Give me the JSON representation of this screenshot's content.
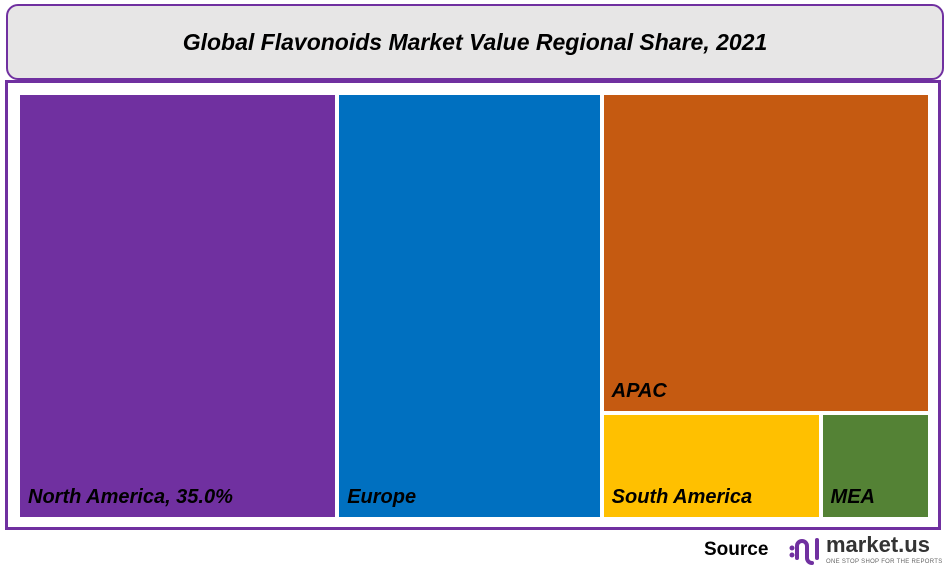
{
  "chart_data": {
    "type": "treemap",
    "title": "Global Flavonoids Market Value Regional Share, 2021",
    "categories": [
      "North America",
      "Europe",
      "APAC",
      "South America",
      "MEA"
    ],
    "values": [
      35.0,
      29.0,
      27.0,
      6.0,
      3.0
    ],
    "labels": [
      "North America, 35.0%",
      "Europe",
      "APAC",
      "South America",
      "MEA"
    ],
    "colors": [
      "#7030A0",
      "#0070C0",
      "#C55A11",
      "#FFC000",
      "#548235"
    ],
    "unit": "%"
  },
  "source": {
    "label": "Source",
    "logo_text": "market.us",
    "logo_tagline": "ONE STOP SHOP FOR THE REPORTS"
  }
}
